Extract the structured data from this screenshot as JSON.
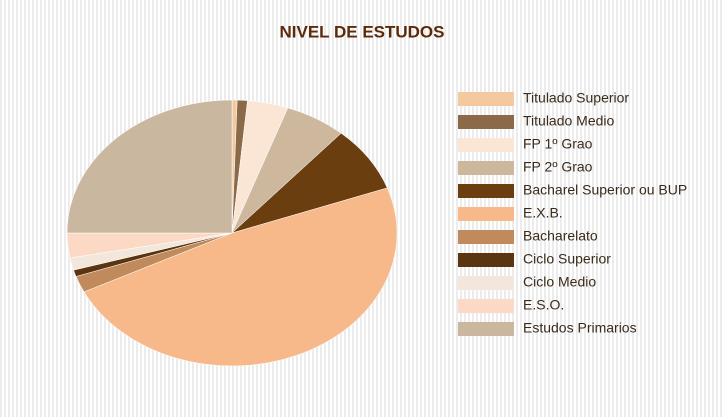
{
  "chart_data": {
    "type": "pie",
    "title": "NIVEL DE ESTUDOS",
    "categories": [
      "Titulado Superior",
      "Titulado Medio",
      "FP 1º Grao",
      "FP 2º Grao",
      "Bacharel Superior ou BUP",
      "E.X.B.",
      "Bacharelato",
      "Ciclo Superior",
      "Ciclo Medio",
      "E.S.O.",
      "Estudos Primarios"
    ],
    "values": [
      0.5,
      1,
      4,
      6,
      8,
      48.2,
      2,
      0.8,
      1.5,
      3,
      25
    ],
    "colors": [
      "#f5c9a0",
      "#8a6a48",
      "#fbe6d6",
      "#cdb89e",
      "#6b3e10",
      "#f7b98a",
      "#c08a5c",
      "#5a3510",
      "#f3e6da",
      "#fcd9c4",
      "#c9b89f"
    ],
    "legend": "right"
  }
}
